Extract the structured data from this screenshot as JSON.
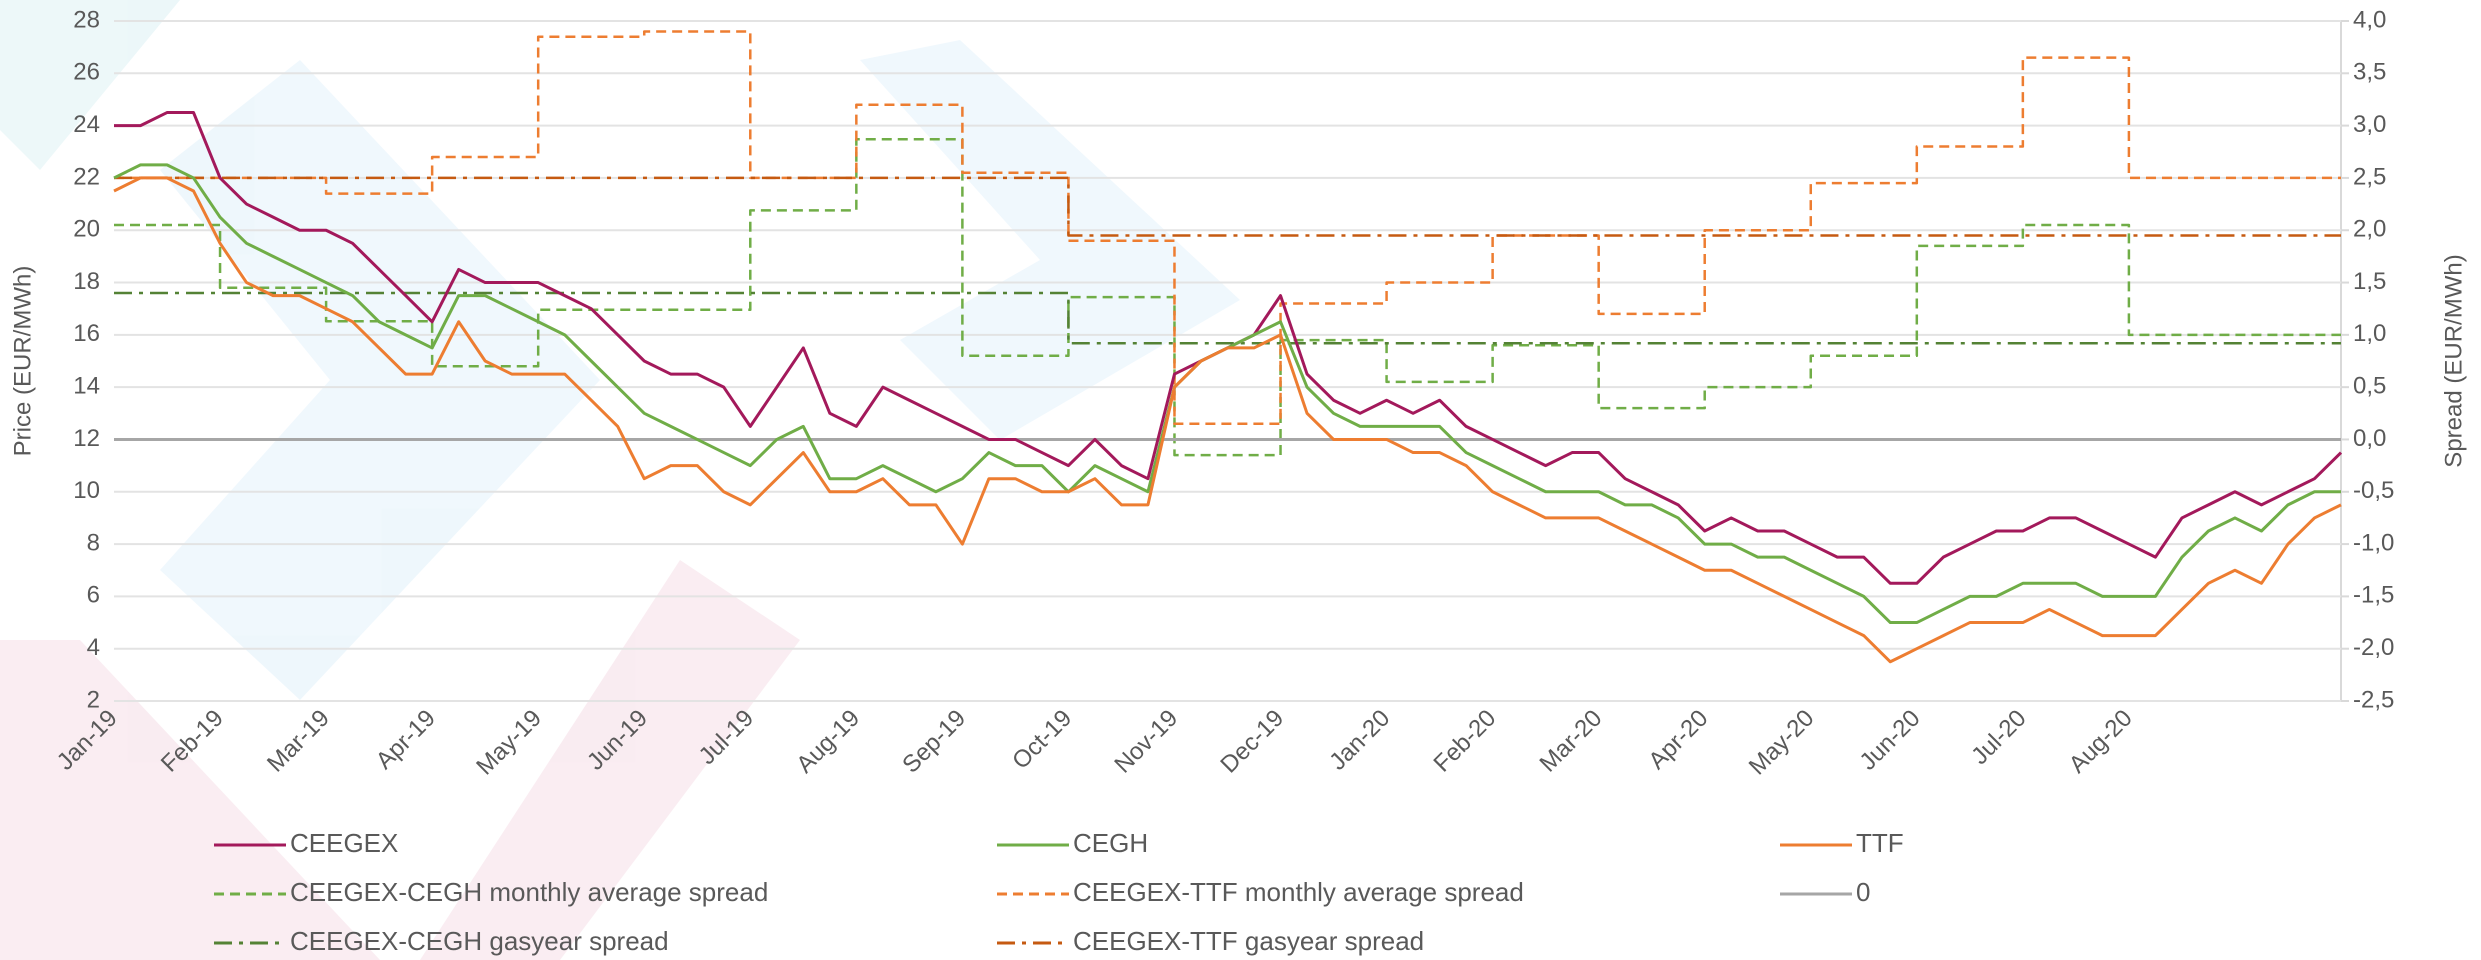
{
  "chart_data": {
    "type": "line",
    "y_title": "Price (EUR/MWh)",
    "y2_title": "Spread (EUR/MWh)",
    "categories": [
      "Jan-19",
      null,
      null,
      null,
      "Feb-19",
      null,
      null,
      null,
      "Mar-19",
      null,
      null,
      null,
      "Apr-19",
      null,
      null,
      null,
      "May-19",
      null,
      null,
      null,
      "Jun-19",
      null,
      null,
      null,
      "Jul-19",
      null,
      null,
      null,
      "Aug-19",
      null,
      null,
      null,
      "Sep-19",
      null,
      null,
      null,
      "Oct-19",
      null,
      null,
      null,
      "Nov-19",
      null,
      null,
      null,
      "Dec-19",
      null,
      null,
      null,
      "Jan-20",
      null,
      null,
      null,
      "Feb-20",
      null,
      null,
      null,
      "Mar-20",
      null,
      null,
      null,
      "Apr-20",
      null,
      null,
      null,
      "May-20",
      null,
      null,
      null,
      "Jun-20",
      null,
      null,
      null,
      "Jul-20",
      null,
      null,
      null,
      "Aug-20",
      null,
      null,
      null,
      null,
      null,
      null,
      null,
      null
    ],
    "ylim": [
      2,
      28
    ],
    "yticks": [
      2,
      4,
      6,
      8,
      10,
      12,
      14,
      16,
      18,
      20,
      22,
      24,
      26,
      28
    ],
    "y2lim": [
      -2.5,
      4.0
    ],
    "y2ticks": [
      {
        "value": -2.5,
        "label": "-2,5"
      },
      {
        "value": -2.0,
        "label": "-2,0"
      },
      {
        "value": -1.5,
        "label": "-1,5"
      },
      {
        "value": -1.0,
        "label": "-1,0"
      },
      {
        "value": -0.5,
        "label": "-0,5"
      },
      {
        "value": 0.0,
        "label": "0,0"
      },
      {
        "value": 0.5,
        "label": "0,5"
      },
      {
        "value": 1.0,
        "label": "1,0"
      },
      {
        "value": 1.5,
        "label": "1,5"
      },
      {
        "value": 2.0,
        "label": "2,0"
      },
      {
        "value": 2.5,
        "label": "2,5"
      },
      {
        "value": 3.0,
        "label": "3,0"
      },
      {
        "value": 3.5,
        "label": "3,5"
      },
      {
        "value": 4.0,
        "label": "4,0"
      }
    ],
    "grid": true,
    "legend": "bottom",
    "series": [
      {
        "name": "CEEGEX",
        "color": "#a3195b",
        "dash": "solid",
        "step": false,
        "values": [
          24,
          24,
          24.5,
          24.5,
          22,
          21,
          20.5,
          20,
          20,
          19.5,
          18.5,
          17.5,
          16.5,
          18.5,
          18,
          18,
          18,
          17.5,
          17,
          16,
          15,
          14.5,
          14.5,
          14,
          12.5,
          14,
          15.5,
          13,
          12.5,
          14,
          13.5,
          13,
          12.5,
          12,
          12,
          11.5,
          11,
          12,
          11,
          10.5,
          14.5,
          15,
          15.5,
          16,
          17.5,
          14.5,
          13.5,
          13,
          13.5,
          13,
          13.5,
          12.5,
          12,
          11.5,
          11,
          11.5,
          11.5,
          10.5,
          10,
          9.5,
          8.5,
          9,
          8.5,
          8.5,
          8,
          7.5,
          7.5,
          6.5,
          6.5,
          7.5,
          8,
          8.5,
          8.5,
          9,
          9,
          8.5,
          8,
          7.5,
          9,
          9.5,
          10,
          9.5,
          10,
          10.5,
          11.5
        ]
      },
      {
        "name": "CEGH",
        "color": "#70ad47",
        "dash": "solid",
        "step": false,
        "values": [
          22,
          22.5,
          22.5,
          22,
          20.5,
          19.5,
          19,
          18.5,
          18,
          17.5,
          16.5,
          16,
          15.5,
          17.5,
          17.5,
          17,
          16.5,
          16,
          15,
          14,
          13,
          12.5,
          12,
          11.5,
          11,
          12,
          12.5,
          10.5,
          10.5,
          11,
          10.5,
          10,
          10.5,
          11.5,
          11,
          11,
          10,
          11,
          10.5,
          10,
          14,
          15,
          15.5,
          16,
          16.5,
          14,
          13,
          12.5,
          12.5,
          12.5,
          12.5,
          11.5,
          11,
          10.5,
          10,
          10,
          10,
          9.5,
          9.5,
          9,
          8,
          8,
          7.5,
          7.5,
          7,
          6.5,
          6,
          5,
          5,
          5.5,
          6,
          6,
          6.5,
          6.5,
          6.5,
          6,
          6,
          6,
          7.5,
          8.5,
          9,
          8.5,
          9.5,
          10,
          10
        ]
      },
      {
        "name": "TTF",
        "color": "#ed7d31",
        "dash": "solid",
        "step": false,
        "values": [
          21.5,
          22,
          22,
          21.5,
          19.5,
          18,
          17.5,
          17.5,
          17,
          16.5,
          15.5,
          14.5,
          14.5,
          16.5,
          15,
          14.5,
          14.5,
          14.5,
          13.5,
          12.5,
          10.5,
          11,
          11,
          10,
          9.5,
          10.5,
          11.5,
          10,
          10,
          10.5,
          9.5,
          9.5,
          8,
          10.5,
          10.5,
          10,
          10,
          10.5,
          9.5,
          9.5,
          14,
          15,
          15.5,
          15.5,
          16,
          13,
          12,
          12,
          12,
          11.5,
          11.5,
          11,
          10,
          9.5,
          9,
          9,
          9,
          8.5,
          8,
          7.5,
          7,
          7,
          6.5,
          6,
          5.5,
          5,
          4.5,
          3.5,
          4,
          4.5,
          5,
          5,
          5,
          5.5,
          5,
          4.5,
          4.5,
          4.5,
          5.5,
          6.5,
          7,
          6.5,
          8,
          9,
          9.5
        ]
      },
      {
        "name": "CEEGEX-CEGH monthly average spread",
        "color": "#70ad47",
        "dash": "dashed",
        "step": true,
        "axis": "y2",
        "values": [
          2.05,
          2.05,
          2.05,
          2.05,
          1.45,
          1.45,
          1.45,
          1.45,
          1.13,
          1.13,
          1.13,
          1.13,
          0.7,
          0.7,
          0.7,
          0.7,
          1.24,
          1.24,
          1.24,
          1.24,
          1.24,
          1.24,
          1.24,
          1.24,
          2.19,
          2.19,
          2.19,
          2.19,
          2.87,
          2.87,
          2.87,
          2.87,
          0.8,
          0.8,
          0.8,
          0.8,
          1.36,
          1.36,
          1.36,
          1.36,
          -0.15,
          -0.15,
          -0.15,
          -0.15,
          0.95,
          0.95,
          0.95,
          0.95,
          0.55,
          0.55,
          0.55,
          0.55,
          0.9,
          0.9,
          0.9,
          0.9,
          0.3,
          0.3,
          0.3,
          0.3,
          0.5,
          0.5,
          0.5,
          0.5,
          0.8,
          0.8,
          0.8,
          0.8,
          1.85,
          1.85,
          1.85,
          1.85,
          2.05,
          2.05,
          2.05,
          2.05,
          1.0,
          1.0,
          1.0,
          1.0,
          1.0,
          1.0,
          1.0,
          1.0,
          1.0
        ]
      },
      {
        "name": "CEEGEX-TTF monthly average spread",
        "color": "#ed7d31",
        "dash": "dashed",
        "step": true,
        "axis": "y2",
        "values": [
          2.5,
          2.5,
          2.5,
          2.5,
          2.5,
          2.5,
          2.5,
          2.5,
          2.35,
          2.35,
          2.35,
          2.35,
          2.7,
          2.7,
          2.7,
          2.7,
          3.85,
          3.85,
          3.85,
          3.85,
          3.9,
          3.9,
          3.9,
          3.9,
          2.5,
          2.5,
          2.5,
          2.5,
          3.2,
          3.2,
          3.2,
          3.2,
          2.55,
          2.55,
          2.55,
          2.55,
          1.9,
          1.9,
          1.9,
          1.9,
          0.15,
          0.15,
          0.15,
          0.15,
          1.3,
          1.3,
          1.3,
          1.3,
          1.5,
          1.5,
          1.5,
          1.5,
          1.95,
          1.95,
          1.95,
          1.95,
          1.2,
          1.2,
          1.2,
          1.2,
          2.0,
          2.0,
          2.0,
          2.0,
          2.45,
          2.45,
          2.45,
          2.45,
          2.8,
          2.8,
          2.8,
          2.8,
          3.65,
          3.65,
          3.65,
          3.65,
          2.5,
          2.5,
          2.5,
          2.5,
          2.5,
          2.5,
          2.5,
          2.5,
          2.5
        ]
      },
      {
        "name": "0",
        "color": "#a6a6a6",
        "dash": "solid",
        "step": false,
        "axis": "y2",
        "values": [
          0,
          0,
          0,
          0,
          0,
          0,
          0,
          0,
          0,
          0,
          0,
          0,
          0,
          0,
          0,
          0,
          0,
          0,
          0,
          0,
          0,
          0,
          0,
          0,
          0,
          0,
          0,
          0,
          0,
          0,
          0,
          0,
          0,
          0,
          0,
          0,
          0,
          0,
          0,
          0,
          0,
          0,
          0,
          0,
          0,
          0,
          0,
          0,
          0,
          0,
          0,
          0,
          0,
          0,
          0,
          0,
          0,
          0,
          0,
          0,
          0,
          0,
          0,
          0,
          0,
          0,
          0,
          0,
          0,
          0,
          0,
          0,
          0,
          0,
          0,
          0,
          0,
          0,
          0,
          0,
          0,
          0,
          0,
          0,
          0
        ]
      },
      {
        "name": "CEEGEX-CEGH gasyear spread",
        "color": "#548235",
        "dash": "dashdot",
        "step": true,
        "axis": "y2",
        "values": [
          1.4,
          1.4,
          1.4,
          1.4,
          1.4,
          1.4,
          1.4,
          1.4,
          1.4,
          1.4,
          1.4,
          1.4,
          1.4,
          1.4,
          1.4,
          1.4,
          1.4,
          1.4,
          1.4,
          1.4,
          1.4,
          1.4,
          1.4,
          1.4,
          1.4,
          1.4,
          1.4,
          1.4,
          1.4,
          1.4,
          1.4,
          1.4,
          1.4,
          1.4,
          1.4,
          1.4,
          0.92,
          0.92,
          0.92,
          0.92,
          0.92,
          0.92,
          0.92,
          0.92,
          0.92,
          0.92,
          0.92,
          0.92,
          0.92,
          0.92,
          0.92,
          0.92,
          0.92,
          0.92,
          0.92,
          0.92,
          0.92,
          0.92,
          0.92,
          0.92,
          0.92,
          0.92,
          0.92,
          0.92,
          0.92,
          0.92,
          0.92,
          0.92,
          0.92,
          0.92,
          0.92,
          0.92,
          0.92,
          0.92,
          0.92,
          0.92,
          0.92,
          0.92,
          0.92,
          0.92,
          0.92,
          0.92,
          0.92,
          0.92,
          0.92
        ]
      },
      {
        "name": "CEEGEX-TTF gasyear spread",
        "color": "#c55a11",
        "dash": "dashdot",
        "step": true,
        "axis": "y2",
        "values": [
          2.5,
          2.5,
          2.5,
          2.5,
          2.5,
          2.5,
          2.5,
          2.5,
          2.5,
          2.5,
          2.5,
          2.5,
          2.5,
          2.5,
          2.5,
          2.5,
          2.5,
          2.5,
          2.5,
          2.5,
          2.5,
          2.5,
          2.5,
          2.5,
          2.5,
          2.5,
          2.5,
          2.5,
          2.5,
          2.5,
          2.5,
          2.5,
          2.5,
          2.5,
          2.5,
          2.5,
          1.95,
          1.95,
          1.95,
          1.95,
          1.95,
          1.95,
          1.95,
          1.95,
          1.95,
          1.95,
          1.95,
          1.95,
          1.95,
          1.95,
          1.95,
          1.95,
          1.95,
          1.95,
          1.95,
          1.95,
          1.95,
          1.95,
          1.95,
          1.95,
          1.95,
          1.95,
          1.95,
          1.95,
          1.95,
          1.95,
          1.95,
          1.95,
          1.95,
          1.95,
          1.95,
          1.95,
          1.95,
          1.95,
          1.95,
          1.95,
          1.95,
          1.95,
          1.95,
          1.95,
          1.95,
          1.95,
          1.95,
          1.95,
          1.95
        ]
      }
    ]
  }
}
